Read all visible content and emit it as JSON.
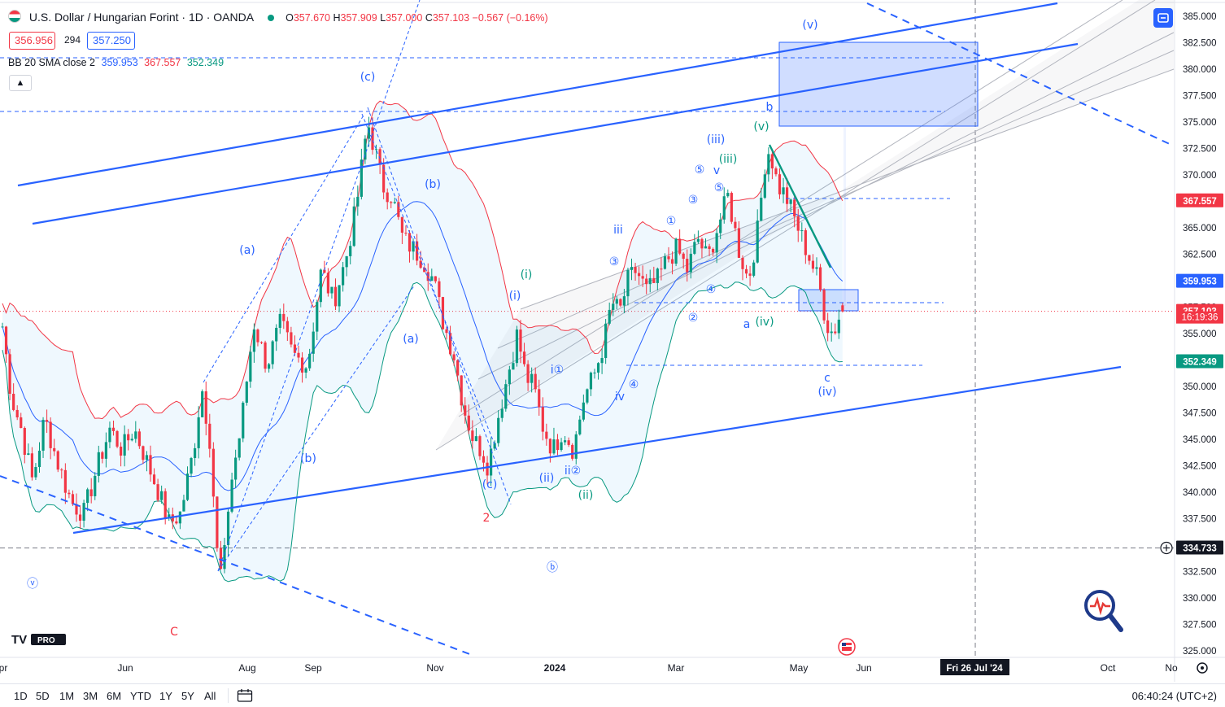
{
  "header": {
    "symbol": "U.S. Dollar / Hungarian Forint · 1D · OANDA",
    "open_label": "O",
    "open": "357.670",
    "high_label": "H",
    "high": "357.909",
    "low_label": "L",
    "low": "357.000",
    "close_label": "C",
    "close": "357.103",
    "change": "−0.567 (−0.16%)",
    "bid": "356.956",
    "spread": "294",
    "ask": "357.250"
  },
  "indicator": {
    "label": "BB 20 SMA close 2",
    "basis": "359.953",
    "upper": "367.557",
    "lower": "352.349"
  },
  "bottom": {
    "timeframes": [
      "1D",
      "5D",
      "1M",
      "3M",
      "6M",
      "YTD",
      "1Y",
      "5Y",
      "All"
    ],
    "clock": "06:40:24 (UTC+2)"
  },
  "colors": {
    "up": "#089981",
    "down": "#f23645",
    "bb_basis": "#2962ff",
    "bb_upper": "#f23645",
    "bb_lower": "#089981",
    "drawing": "#2962ff",
    "wave_blue": "#2962ff",
    "wave_green": "#089981",
    "wave_red": "#f23645"
  },
  "chart_data": {
    "type": "candlestick",
    "title": "U.S. Dollar / Hungarian Forint · 1D · OANDA",
    "ylim": [
      323.5,
      386.5
    ],
    "y_ticks": [
      325,
      327.5,
      330,
      332.5,
      335,
      337.5,
      340,
      342.5,
      345,
      347.5,
      350,
      352.5,
      355,
      357.5,
      360,
      362.5,
      365,
      367.5,
      370,
      372.5,
      375,
      377.5,
      380,
      382.5,
      385
    ],
    "x_labels": [
      "Apr",
      "Jun",
      "Aug",
      "Sep",
      "Nov",
      "2024",
      "Mar",
      "May",
      "Jun",
      "Fri 26 Jul '24",
      "Oct",
      "No"
    ],
    "series": [
      {
        "name": "Price",
        "points": [
          [
            0,
            357.5
          ],
          [
            14,
            349
          ],
          [
            26,
            346
          ],
          [
            40,
            341
          ],
          [
            55,
            347
          ],
          [
            70,
            343
          ],
          [
            88,
            339
          ],
          [
            103,
            338
          ],
          [
            118,
            342
          ],
          [
            135,
            346
          ],
          [
            150,
            344
          ],
          [
            165,
            346
          ],
          [
            180,
            343
          ],
          [
            195,
            340
          ],
          [
            208,
            337
          ],
          [
            222,
            338
          ],
          [
            238,
            344
          ],
          [
            248,
            350
          ],
          [
            258,
            345
          ],
          [
            268,
            333
          ],
          [
            274,
            332
          ],
          [
            282,
            340
          ],
          [
            296,
            346
          ],
          [
            312,
            356
          ],
          [
            328,
            352
          ],
          [
            345,
            356
          ],
          [
            360,
            353
          ],
          [
            378,
            352
          ],
          [
            395,
            361
          ],
          [
            410,
            358
          ],
          [
            425,
            362
          ],
          [
            438,
            367
          ],
          [
            445,
            371
          ],
          [
            452,
            375
          ],
          [
            462,
            372
          ],
          [
            470,
            369
          ],
          [
            482,
            368
          ],
          [
            495,
            364
          ],
          [
            508,
            363
          ],
          [
            520,
            362
          ],
          [
            533,
            360
          ],
          [
            545,
            356
          ],
          [
            558,
            353
          ],
          [
            570,
            348
          ],
          [
            582,
            345
          ],
          [
            592,
            344
          ],
          [
            600,
            342.5
          ],
          [
            612,
            347
          ],
          [
            624,
            351
          ],
          [
            636,
            355
          ],
          [
            646,
            351
          ],
          [
            656,
            350
          ],
          [
            668,
            346
          ],
          [
            680,
            344
          ],
          [
            692,
            346
          ],
          [
            705,
            344
          ],
          [
            718,
            349
          ],
          [
            730,
            351
          ],
          [
            742,
            354
          ],
          [
            752,
            358
          ],
          [
            762,
            357
          ],
          [
            772,
            360
          ],
          [
            782,
            361
          ],
          [
            795,
            359
          ],
          [
            808,
            360
          ],
          [
            820,
            362
          ],
          [
            832,
            363
          ],
          [
            845,
            361
          ],
          [
            858,
            364
          ],
          [
            870,
            362
          ],
          [
            882,
            365
          ],
          [
            895,
            368
          ],
          [
            908,
            363
          ],
          [
            920,
            360
          ],
          [
            932,
            365
          ],
          [
            940,
            371
          ],
          [
            946,
            372.5
          ],
          [
            956,
            369
          ],
          [
            966,
            368
          ],
          [
            976,
            366
          ],
          [
            986,
            364
          ],
          [
            996,
            362
          ],
          [
            1006,
            360
          ],
          [
            1016,
            356
          ],
          [
            1024,
            355
          ],
          [
            1031,
            356.5
          ],
          [
            1037,
            357.1
          ]
        ]
      },
      {
        "name": "BB 20 SMA close 2 basis",
        "values_ref": "359.953"
      },
      {
        "name": "BB upper",
        "values_ref": "367.557"
      },
      {
        "name": "BB lower",
        "values_ref": "352.349"
      }
    ],
    "price_labels": [
      {
        "value": "367.557",
        "role": "bb_upper"
      },
      {
        "value": "359.953",
        "role": "bb_basis"
      },
      {
        "value": "357.103",
        "role": "last"
      },
      {
        "value": "16:19:36",
        "role": "countdown"
      },
      {
        "value": "352.349",
        "role": "bb_lower"
      },
      {
        "value": "334.733",
        "role": "crosshair"
      }
    ],
    "wave_labels": [
      {
        "text": "(v)",
        "color": "blue",
        "x": 996,
        "y": 30
      },
      {
        "text": "(c)",
        "color": "blue",
        "x": 452,
        "y": 94
      },
      {
        "text": "b",
        "color": "blue",
        "x": 946,
        "y": 131
      },
      {
        "text": "(v)",
        "color": "green",
        "x": 936,
        "y": 155
      },
      {
        "text": "(iii)",
        "color": "blue",
        "x": 880,
        "y": 171
      },
      {
        "text": "(iii)",
        "color": "green",
        "x": 895,
        "y": 195
      },
      {
        "text": "⑤",
        "color": "blue",
        "x": 860,
        "y": 208
      },
      {
        "text": "v",
        "color": "blue",
        "x": 881,
        "y": 209
      },
      {
        "text": "(b)",
        "color": "blue",
        "x": 532,
        "y": 226
      },
      {
        "text": "⑤",
        "color": "blue",
        "x": 884,
        "y": 230
      },
      {
        "text": "③",
        "color": "blue",
        "x": 852,
        "y": 245
      },
      {
        "text": "①",
        "color": "blue",
        "x": 825,
        "y": 271
      },
      {
        "text": "iii",
        "color": "blue",
        "x": 760,
        "y": 282
      },
      {
        "text": "(a)",
        "color": "blue",
        "x": 304,
        "y": 307
      },
      {
        "text": "③",
        "color": "blue",
        "x": 755,
        "y": 321
      },
      {
        "text": "(i)",
        "color": "green",
        "x": 647,
        "y": 337
      },
      {
        "text": "④",
        "color": "blue",
        "x": 874,
        "y": 355
      },
      {
        "text": "(i)",
        "color": "blue",
        "x": 633,
        "y": 363
      },
      {
        "text": "②",
        "color": "blue",
        "x": 852,
        "y": 390
      },
      {
        "text": "(iv)",
        "color": "green",
        "x": 940,
        "y": 395
      },
      {
        "text": "a",
        "color": "blue",
        "x": 918,
        "y": 398
      },
      {
        "text": "(a)",
        "color": "blue",
        "x": 505,
        "y": 416
      },
      {
        "text": "i①",
        "color": "blue",
        "x": 685,
        "y": 454
      },
      {
        "text": "c",
        "color": "blue",
        "x": 1017,
        "y": 464
      },
      {
        "text": "④",
        "color": "blue",
        "x": 779,
        "y": 472
      },
      {
        "text": "(iv)",
        "color": "blue",
        "x": 1017,
        "y": 481
      },
      {
        "text": "iv",
        "color": "blue",
        "x": 762,
        "y": 487
      },
      {
        "text": "(b)",
        "color": "blue",
        "x": 379,
        "y": 563
      },
      {
        "text": "ii②",
        "color": "blue",
        "x": 704,
        "y": 578
      },
      {
        "text": "(ii)",
        "color": "blue",
        "x": 672,
        "y": 587
      },
      {
        "text": "(c)",
        "color": "blue",
        "x": 602,
        "y": 595
      },
      {
        "text": "(ii)",
        "color": "green",
        "x": 720,
        "y": 608
      },
      {
        "text": "2",
        "color": "red",
        "x": 598,
        "y": 636
      },
      {
        "text": "ⓑ",
        "color": "blue",
        "x": 679,
        "y": 697
      },
      {
        "text": "ⓥ",
        "color": "blue",
        "x": 40,
        "y": 717
      },
      {
        "text": "C",
        "color": "red",
        "x": 214,
        "y": 776
      }
    ]
  }
}
